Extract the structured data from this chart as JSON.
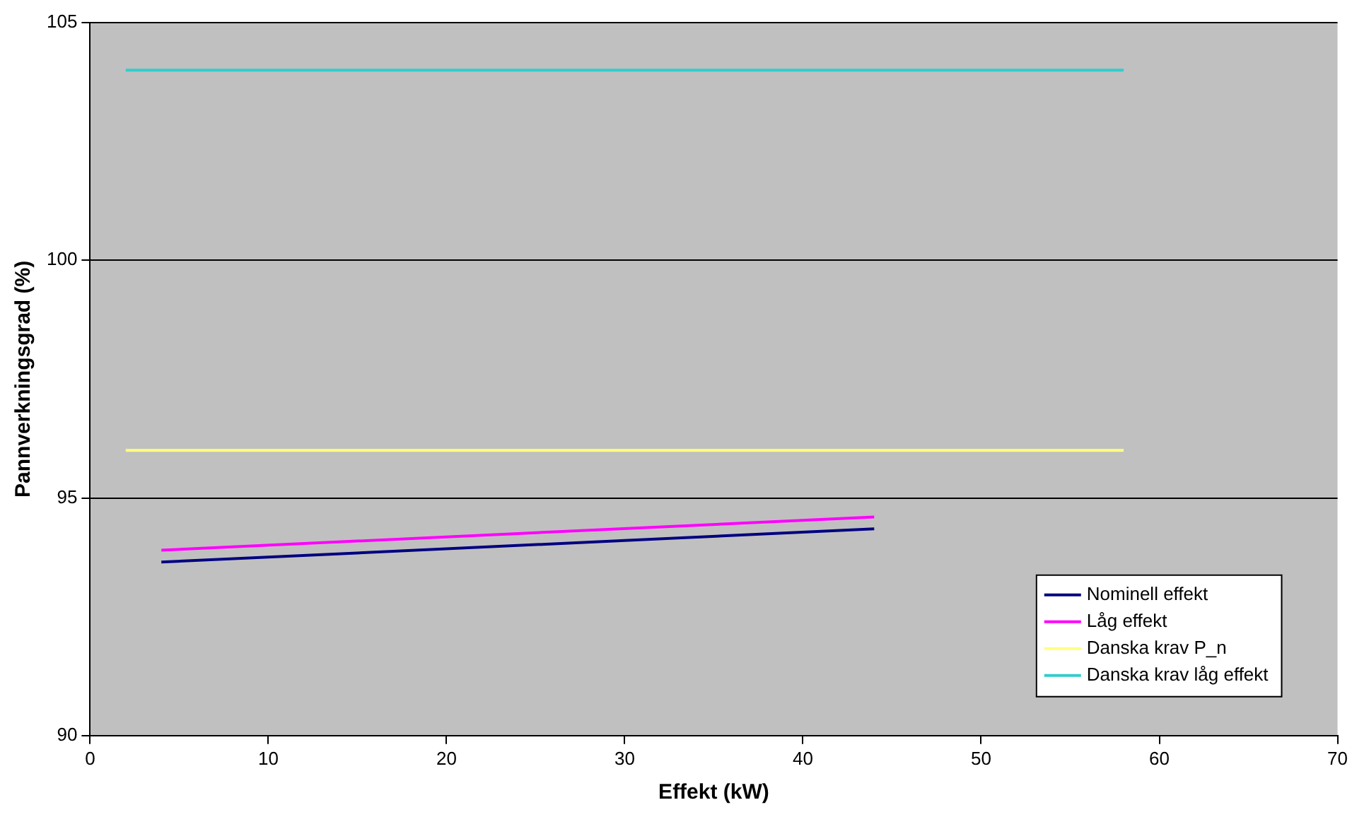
{
  "chart_data": {
    "type": "line",
    "xlabel": "Effekt (kW)",
    "ylabel": "Pannverkningsgrad (%)",
    "xlim": [
      0,
      70
    ],
    "xticks": [
      0,
      10,
      20,
      30,
      40,
      50,
      60,
      70
    ],
    "ylim": [
      90,
      105
    ],
    "yticks": [
      90,
      95,
      100,
      105
    ],
    "grid": "y",
    "legend": "bottom right",
    "marker": "none",
    "line_style": "solid",
    "series": [
      {
        "name": "Nominell effekt",
        "color": "#000080",
        "x": [
          4,
          44
        ],
        "values": [
          93.65,
          94.35
        ]
      },
      {
        "name": "Låg effekt",
        "color": "#ff00ff",
        "x": [
          4,
          44
        ],
        "values": [
          93.9,
          94.6
        ]
      },
      {
        "name": "Danska krav P_n",
        "color": "#ffff80",
        "x": [
          2,
          58
        ],
        "values": [
          96,
          96
        ]
      },
      {
        "name": "Danska krav låg effekt",
        "color": "#33cccc",
        "x": [
          2,
          58
        ],
        "values": [
          104,
          104
        ]
      }
    ]
  }
}
